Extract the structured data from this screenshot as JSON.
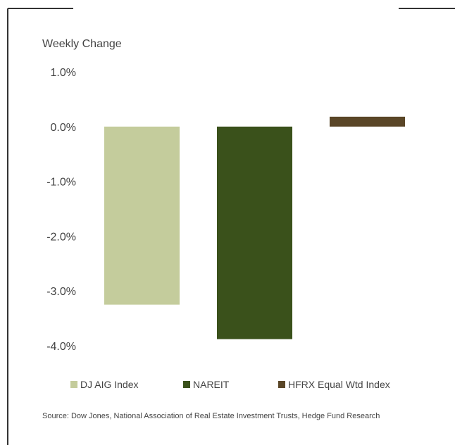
{
  "chart_data": {
    "type": "bar",
    "ylabel": "Weekly Change",
    "categories": [
      "DJ AIG Index",
      "NAREIT",
      "HFRX Equal Wtd Index"
    ],
    "series": [
      {
        "name": "",
        "values": [
          -3.25,
          -3.88,
          0.18
        ],
        "colors": [
          "#c4cc9c",
          "#3a511b",
          "#5a4627"
        ]
      }
    ],
    "ylim": [
      -4.0,
      1.0
    ],
    "yticks": [
      1.0,
      0.0,
      -1.0,
      -2.0,
      -3.0,
      -4.0
    ],
    "ytick_labels": [
      "1.0%",
      "0.0%",
      "-1.0%",
      "-2.0%",
      "-3.0%",
      "-4.0%"
    ],
    "grid": false,
    "legend": {
      "placement": "bottom",
      "entries": [
        "DJ AIG Index",
        "NAREIT",
        "HFRX Equal Wtd Index"
      ]
    }
  },
  "source_text": "Source: Dow Jones, National Association of Real Estate Investment Trusts, Hedge Fund Research"
}
